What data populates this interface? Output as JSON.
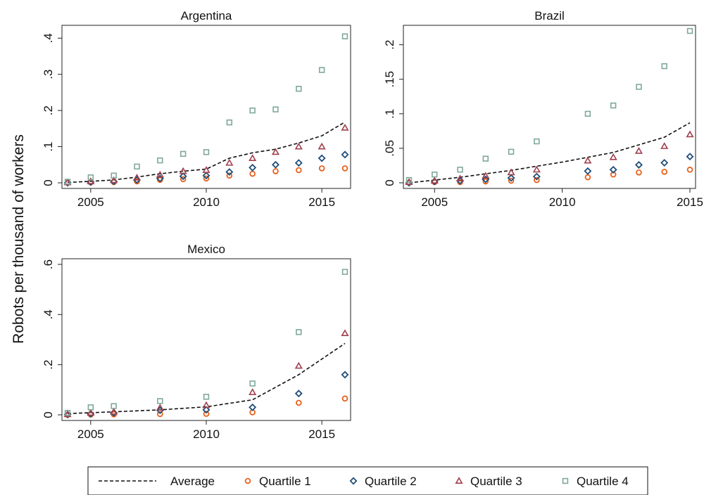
{
  "chart_data": {
    "type": "scatter",
    "ylabel": "Robots per thousand of workers",
    "colors": {
      "Average": "#111111",
      "Quartile 1": "#e8601c",
      "Quartile 2": "#1f4e79",
      "Quartile 3": "#a0404e",
      "Quartile 4": "#7fa898"
    },
    "markers": {
      "Quartile 1": "circle",
      "Quartile 2": "diamond",
      "Quartile 3": "triangle",
      "Quartile 4": "square"
    },
    "legend": [
      "Average",
      "Quartile 1",
      "Quartile 2",
      "Quartile 3",
      "Quartile 4"
    ],
    "panels": [
      {
        "title": "Argentina",
        "xlim": [
          2004,
          2016
        ],
        "ylim": [
          0,
          0.42
        ],
        "xticks": [
          2005,
          2010,
          2015
        ],
        "xtick_labels": [
          "2005",
          "2010",
          "2015"
        ],
        "yticks": [
          0,
          0.1,
          0.2,
          0.3,
          0.4
        ],
        "ytick_labels": [
          "0",
          ".1",
          ".2",
          ".3",
          ".4"
        ],
        "average": {
          "x": [
            2004,
            2005,
            2006,
            2007,
            2008,
            2009,
            2010,
            2011,
            2012,
            2013,
            2014,
            2015,
            2016
          ],
          "y": [
            0.001,
            0.004,
            0.008,
            0.016,
            0.025,
            0.032,
            0.038,
            0.068,
            0.083,
            0.093,
            0.11,
            0.13,
            0.168
          ]
        },
        "series": [
          {
            "name": "Quartile 1",
            "x": [
              2004,
              2005,
              2006,
              2007,
              2008,
              2009,
              2010,
              2011,
              2012,
              2013,
              2014,
              2015,
              2016
            ],
            "y": [
              0.0,
              0.001,
              0.002,
              0.004,
              0.008,
              0.01,
              0.012,
              0.02,
              0.025,
              0.032,
              0.035,
              0.04,
              0.04
            ]
          },
          {
            "name": "Quartile 2",
            "x": [
              2004,
              2005,
              2006,
              2007,
              2008,
              2009,
              2010,
              2011,
              2012,
              2013,
              2014,
              2015,
              2016
            ],
            "y": [
              0.0,
              0.002,
              0.004,
              0.008,
              0.012,
              0.018,
              0.02,
              0.03,
              0.042,
              0.05,
              0.055,
              0.068,
              0.078
            ]
          },
          {
            "name": "Quartile 3",
            "x": [
              2004,
              2005,
              2006,
              2007,
              2008,
              2009,
              2010,
              2011,
              2012,
              2013,
              2014,
              2015,
              2016
            ],
            "y": [
              0.001,
              0.004,
              0.007,
              0.014,
              0.022,
              0.032,
              0.035,
              0.055,
              0.068,
              0.085,
              0.1,
              0.1,
              0.152
            ]
          },
          {
            "name": "Quartile 4",
            "x": [
              2004,
              2005,
              2006,
              2007,
              2008,
              2009,
              2010,
              2011,
              2012,
              2013,
              2014,
              2015,
              2016
            ],
            "y": [
              0.003,
              0.015,
              0.02,
              0.045,
              0.062,
              0.08,
              0.085,
              0.167,
              0.2,
              0.203,
              0.26,
              0.312,
              0.405
            ]
          }
        ]
      },
      {
        "title": "Brazil",
        "xlim": [
          2004,
          2015
        ],
        "ylim": [
          0,
          0.22
        ],
        "xticks": [
          2005,
          2010,
          2015
        ],
        "xtick_labels": [
          "2005",
          "2010",
          "2015"
        ],
        "yticks": [
          0,
          0.05,
          0.1,
          0.15,
          0.2
        ],
        "ytick_labels": [
          "0",
          ".05",
          ".1",
          ".15",
          ".2"
        ],
        "average": {
          "x": [
            2004,
            2005,
            2006,
            2007,
            2008,
            2009,
            2010,
            2011,
            2012,
            2013,
            2014,
            2015
          ],
          "y": [
            0.0,
            0.004,
            0.008,
            0.013,
            0.018,
            0.024,
            0.03,
            0.037,
            0.044,
            0.055,
            0.066,
            0.087
          ]
        },
        "series": [
          {
            "name": "Quartile 1",
            "x": [
              2004,
              2005,
              2006,
              2007,
              2008,
              2009,
              2011,
              2012,
              2013,
              2014,
              2015
            ],
            "y": [
              0.0,
              0.001,
              0.001,
              0.002,
              0.003,
              0.004,
              0.008,
              0.012,
              0.015,
              0.016,
              0.019
            ]
          },
          {
            "name": "Quartile 2",
            "x": [
              2004,
              2005,
              2006,
              2007,
              2008,
              2009,
              2011,
              2012,
              2013,
              2014,
              2015
            ],
            "y": [
              0.0,
              0.002,
              0.003,
              0.005,
              0.007,
              0.009,
              0.017,
              0.019,
              0.026,
              0.029,
              0.038
            ]
          },
          {
            "name": "Quartile 3",
            "x": [
              2004,
              2005,
              2006,
              2007,
              2008,
              2009,
              2011,
              2012,
              2013,
              2014,
              2015
            ],
            "y": [
              0.001,
              0.003,
              0.006,
              0.01,
              0.015,
              0.019,
              0.032,
              0.037,
              0.046,
              0.053,
              0.07
            ]
          },
          {
            "name": "Quartile 4",
            "x": [
              2004,
              2005,
              2006,
              2007,
              2008,
              2009,
              2011,
              2012,
              2013,
              2014,
              2015
            ],
            "y": [
              0.004,
              0.012,
              0.019,
              0.035,
              0.045,
              0.06,
              0.1,
              0.112,
              0.139,
              0.169,
              0.22
            ]
          }
        ]
      },
      {
        "title": "Mexico",
        "xlim": [
          2004,
          2016
        ],
        "ylim": [
          0,
          0.6
        ],
        "xticks": [
          2005,
          2010,
          2015
        ],
        "xtick_labels": [
          "2005",
          "2010",
          "2015"
        ],
        "yticks": [
          0,
          0.2,
          0.4,
          0.6
        ],
        "ytick_labels": [
          "0",
          ".2",
          ".4",
          ".6"
        ],
        "average": {
          "x": [
            2004,
            2006,
            2008,
            2010,
            2012,
            2014,
            2016
          ],
          "y": [
            0.005,
            0.012,
            0.02,
            0.032,
            0.06,
            0.16,
            0.285
          ]
        },
        "series": [
          {
            "name": "Quartile 1",
            "x": [
              2004,
              2005,
              2006,
              2008,
              2010,
              2012,
              2014,
              2016
            ],
            "y": [
              0.0,
              0.001,
              0.002,
              0.003,
              0.004,
              0.01,
              0.048,
              0.065
            ]
          },
          {
            "name": "Quartile 2",
            "x": [
              2004,
              2005,
              2006,
              2008,
              2010,
              2012,
              2014,
              2016
            ],
            "y": [
              0.001,
              0.004,
              0.008,
              0.018,
              0.02,
              0.03,
              0.085,
              0.16
            ]
          },
          {
            "name": "Quartile 3",
            "x": [
              2004,
              2005,
              2006,
              2008,
              2010,
              2012,
              2014,
              2016
            ],
            "y": [
              0.002,
              0.008,
              0.012,
              0.028,
              0.038,
              0.09,
              0.195,
              0.325
            ]
          },
          {
            "name": "Quartile 4",
            "x": [
              2004,
              2005,
              2006,
              2008,
              2010,
              2012,
              2014,
              2016
            ],
            "y": [
              0.008,
              0.03,
              0.035,
              0.055,
              0.072,
              0.125,
              0.33,
              0.57
            ]
          }
        ]
      }
    ]
  }
}
